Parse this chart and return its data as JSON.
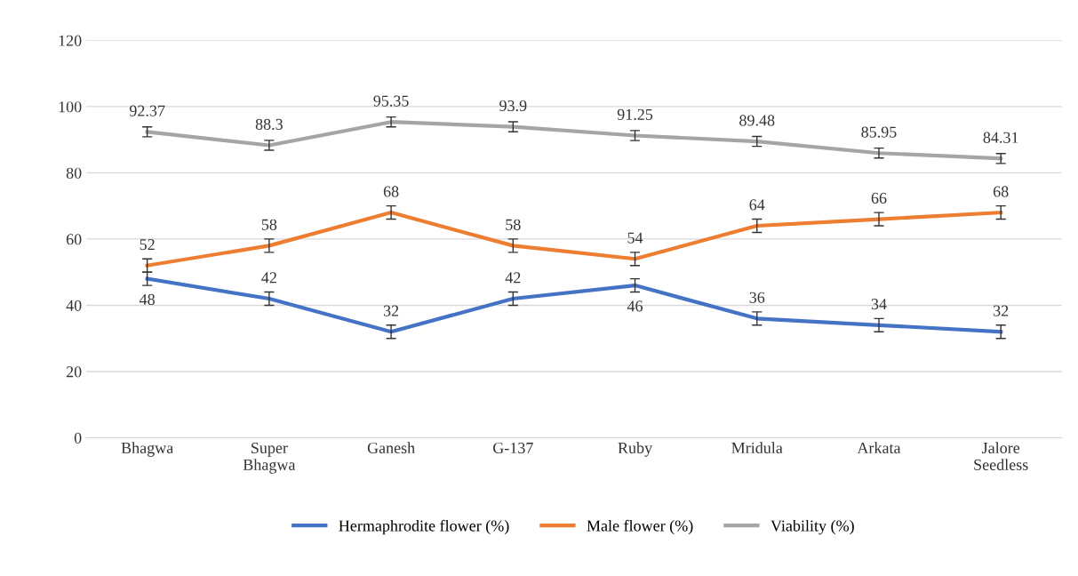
{
  "chart_data": {
    "type": "line",
    "categories": [
      "Bhagwa",
      "Super\nBhagwa",
      "Ganesh",
      "G-137",
      "Ruby",
      "Mridula",
      "Arkata",
      "Jalore\nSeedless"
    ],
    "series": [
      {
        "name": "Hermaphrodite flower (%)",
        "color": "#4472c4",
        "values": [
          48,
          42,
          32,
          42,
          46,
          36,
          34,
          32
        ],
        "errors": [
          2,
          2,
          2,
          2,
          2,
          2,
          2,
          2
        ]
      },
      {
        "name": "Male flower (%)",
        "color": "#ed7d31",
        "values": [
          52,
          58,
          68,
          58,
          54,
          64,
          66,
          68
        ],
        "errors": [
          2,
          2,
          2,
          2,
          2,
          2,
          2,
          2
        ]
      },
      {
        "name": "Viability (%)",
        "color": "#a5a5a5",
        "values": [
          92.37,
          88.3,
          95.35,
          93.9,
          91.25,
          89.48,
          85.95,
          84.31
        ],
        "errors": [
          1.5,
          1.5,
          1.5,
          1.5,
          1.5,
          1.5,
          1.5,
          1.5
        ]
      }
    ],
    "ylim": [
      0,
      120
    ],
    "yticks": [
      0,
      20,
      40,
      60,
      80,
      100,
      120
    ],
    "grid": "y",
    "legend": "bottom",
    "data_labels": true,
    "marker": "none",
    "line_style": "solid"
  }
}
